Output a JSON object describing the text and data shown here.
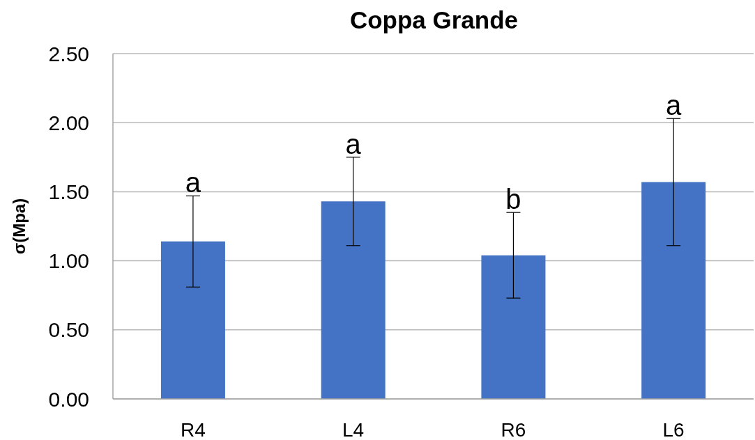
{
  "chart_data": {
    "type": "bar",
    "title": "Coppa Grande",
    "ylabel": "σ(Mpa)",
    "categories": [
      "R4",
      "L4",
      "R6",
      "L6"
    ],
    "values": [
      1.14,
      1.43,
      1.04,
      1.57
    ],
    "errors": [
      0.33,
      0.32,
      0.31,
      0.46
    ],
    "color": "#4472c4",
    "ylim": [
      0,
      2.5
    ],
    "yticks": [
      {
        "value": 0,
        "label": "0.00"
      },
      {
        "value": 0.5,
        "label": "0.50"
      },
      {
        "value": 1,
        "label": "1.00"
      },
      {
        "value": 1.5,
        "label": "1.50"
      },
      {
        "value": 2,
        "label": "2.00"
      },
      {
        "value": 2.5,
        "label": "2.50"
      }
    ],
    "grid": "y",
    "annotations": [
      {
        "text": "a",
        "x": "R4",
        "y": 1.47
      },
      {
        "text": "a",
        "x": "L4",
        "y": 1.75
      },
      {
        "text": "b",
        "x": "R6",
        "y": 1.35
      },
      {
        "text": "a",
        "x": "L6",
        "y": 2.03
      }
    ]
  }
}
